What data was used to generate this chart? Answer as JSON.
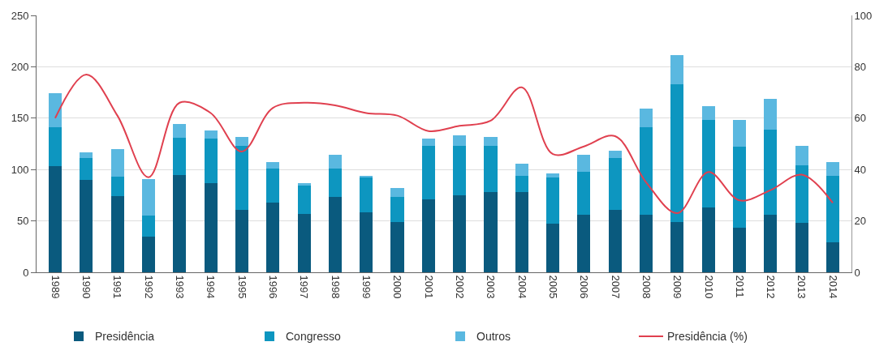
{
  "chart_data": {
    "type": "bar",
    "stacked": true,
    "categories": [
      "1989",
      "1990",
      "1991",
      "1992",
      "1993",
      "1994",
      "1995",
      "1996",
      "1997",
      "1998",
      "1999",
      "2000",
      "2001",
      "2002",
      "2003",
      "2004",
      "2005",
      "2006",
      "2007",
      "2008",
      "2009",
      "2010",
      "2011",
      "2012",
      "2013",
      "2014"
    ],
    "series": [
      {
        "name": "Presidência",
        "color": "#0a5a7e",
        "values": [
          103,
          90,
          74,
          35,
          95,
          87,
          61,
          68,
          57,
          73,
          58,
          49,
          71,
          75,
          78,
          78,
          47,
          56,
          61,
          56,
          49,
          63,
          43,
          56,
          48,
          29
        ]
      },
      {
        "name": "Congresso",
        "color": "#0d96c0",
        "values": [
          38,
          21,
          19,
          20,
          36,
          43,
          62,
          33,
          27,
          28,
          35,
          24,
          52,
          48,
          45,
          16,
          45,
          42,
          50,
          85,
          134,
          85,
          79,
          83,
          56,
          65
        ]
      },
      {
        "name": "Outros",
        "color": "#5ab8e0",
        "values": [
          33,
          6,
          27,
          36,
          13,
          8,
          9,
          6,
          3,
          13,
          1,
          9,
          7,
          10,
          9,
          12,
          4,
          16,
          7,
          18,
          28,
          14,
          26,
          30,
          19,
          13
        ]
      },
      {
        "name": "Presidência (%)",
        "color": "#e0404f",
        "type": "line",
        "axis": "y2",
        "values": [
          60,
          77,
          61,
          37,
          66,
          62,
          47,
          64,
          66,
          65,
          62,
          61,
          55,
          57,
          59,
          72,
          46,
          49,
          53,
          35,
          23,
          39,
          28,
          32,
          38,
          27
        ]
      }
    ],
    "ylim": [
      0,
      250
    ],
    "yticks": [
      0,
      50,
      100,
      150,
      200,
      250
    ],
    "y2lim": [
      0,
      100
    ],
    "y2ticks": [
      0,
      20,
      40,
      60,
      80,
      100
    ],
    "grid": "y",
    "legend": "bottom",
    "marker": "none",
    "line_style": "solid"
  }
}
